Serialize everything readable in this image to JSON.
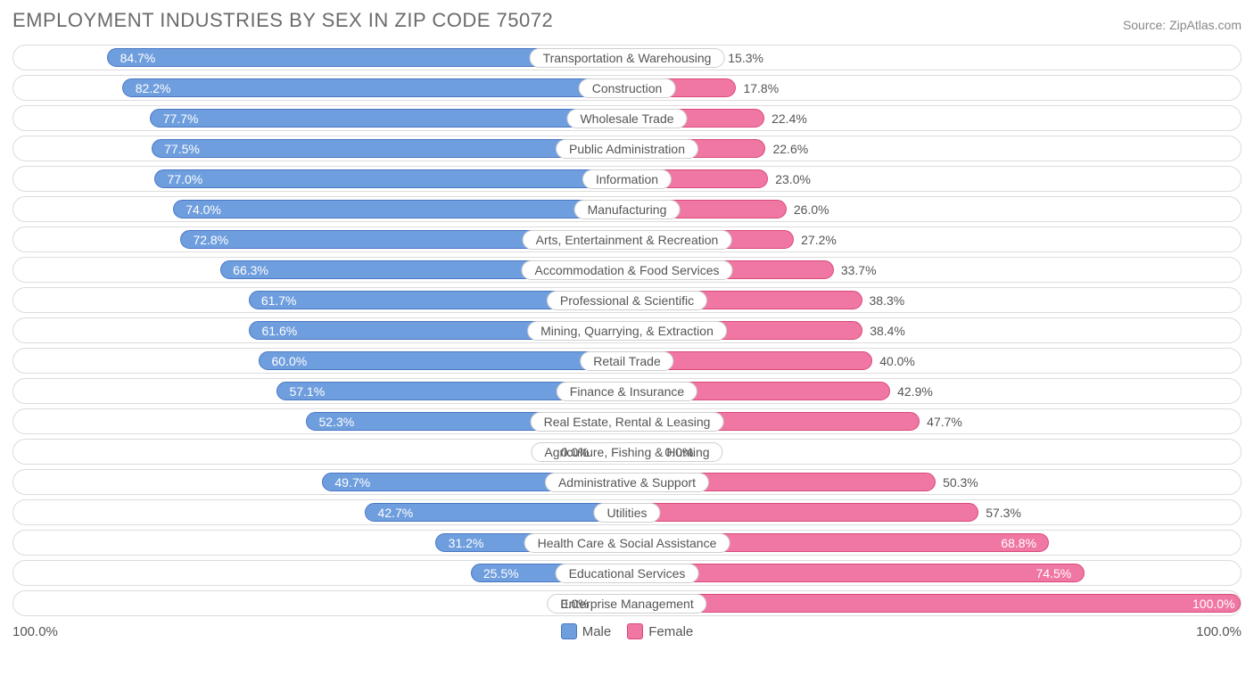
{
  "title": "EMPLOYMENT INDUSTRIES BY SEX IN ZIP CODE 75072",
  "source": "Source: ZipAtlas.com",
  "chart": {
    "type": "diverging-bar",
    "male_color": "#6f9ede",
    "male_border": "#4a77c4",
    "male_zero_color": "#a9c3ec",
    "female_color": "#f077a3",
    "female_border": "#d84a7a",
    "female_zero_color": "#f7b6cf",
    "track_border": "#dcdcdc",
    "label_border": "#cfcfcf",
    "text_color": "#555555",
    "title_color": "#6b6b6b",
    "background": "#ffffff",
    "axis_left": "100.0%",
    "axis_right": "100.0%",
    "legend": {
      "male": "Male",
      "female": "Female"
    },
    "min_bar_width_pct": 5,
    "rows": [
      {
        "label": "Transportation & Warehousing",
        "male": 84.7,
        "female": 15.3
      },
      {
        "label": "Construction",
        "male": 82.2,
        "female": 17.8
      },
      {
        "label": "Wholesale Trade",
        "male": 77.7,
        "female": 22.4
      },
      {
        "label": "Public Administration",
        "male": 77.5,
        "female": 22.6
      },
      {
        "label": "Information",
        "male": 77.0,
        "female": 23.0
      },
      {
        "label": "Manufacturing",
        "male": 74.0,
        "female": 26.0
      },
      {
        "label": "Arts, Entertainment & Recreation",
        "male": 72.8,
        "female": 27.2
      },
      {
        "label": "Accommodation & Food Services",
        "male": 66.3,
        "female": 33.7
      },
      {
        "label": "Professional & Scientific",
        "male": 61.7,
        "female": 38.3
      },
      {
        "label": "Mining, Quarrying, & Extraction",
        "male": 61.6,
        "female": 38.4
      },
      {
        "label": "Retail Trade",
        "male": 60.0,
        "female": 40.0
      },
      {
        "label": "Finance & Insurance",
        "male": 57.1,
        "female": 42.9
      },
      {
        "label": "Real Estate, Rental & Leasing",
        "male": 52.3,
        "female": 47.7
      },
      {
        "label": "Agriculture, Fishing & Hunting",
        "male": 0.0,
        "female": 0.0
      },
      {
        "label": "Administrative & Support",
        "male": 49.7,
        "female": 50.3
      },
      {
        "label": "Utilities",
        "male": 42.7,
        "female": 57.3
      },
      {
        "label": "Health Care & Social Assistance",
        "male": 31.2,
        "female": 68.8
      },
      {
        "label": "Educational Services",
        "male": 25.5,
        "female": 74.5
      },
      {
        "label": "Enterprise Management",
        "male": 0.0,
        "female": 100.0
      }
    ]
  }
}
